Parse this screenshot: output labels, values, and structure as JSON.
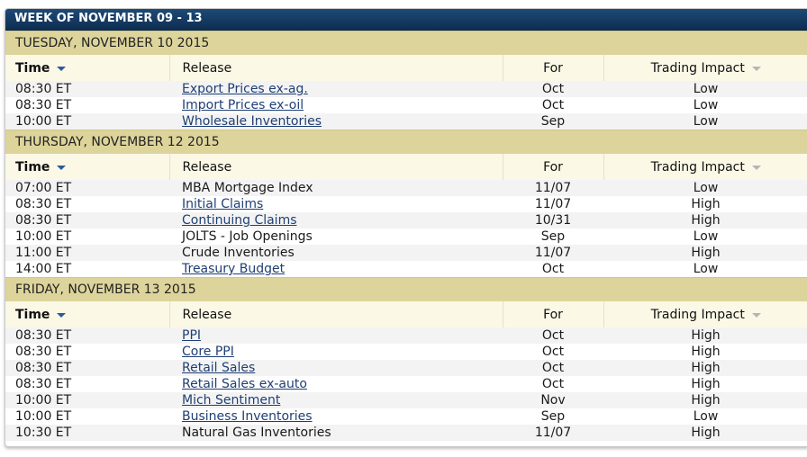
{
  "week_title": "WEEK OF NOVEMBER 09 - 13",
  "columns": {
    "time": "Time",
    "release": "Release",
    "for": "For",
    "impact": "Trading Impact"
  },
  "icons": {
    "time_sort": "sort-down-icon",
    "impact_sort": "sort-down-icon"
  },
  "colors": {
    "header_bg": "#13385f",
    "day_bg": "#ddd49b",
    "link": "#1f3f74"
  },
  "days": [
    {
      "title": "TUESDAY, NOVEMBER 10 2015",
      "rows": [
        {
          "time": "08:30 ET",
          "release": "Export Prices ex-ag.",
          "link": true,
          "for": "Oct",
          "impact": "Low"
        },
        {
          "time": "08:30 ET",
          "release": "Import Prices ex-oil",
          "link": true,
          "for": "Oct",
          "impact": "Low"
        },
        {
          "time": "10:00 ET",
          "release": "Wholesale Inventories",
          "link": true,
          "for": "Sep",
          "impact": "Low"
        }
      ]
    },
    {
      "title": "THURSDAY, NOVEMBER 12 2015",
      "rows": [
        {
          "time": "07:00 ET",
          "release": "MBA Mortgage Index",
          "link": false,
          "for": "11/07",
          "impact": "Low"
        },
        {
          "time": "08:30 ET",
          "release": "Initial Claims",
          "link": true,
          "for": "11/07",
          "impact": "High"
        },
        {
          "time": "08:30 ET",
          "release": "Continuing Claims",
          "link": true,
          "for": "10/31",
          "impact": "High"
        },
        {
          "time": "10:00 ET",
          "release": "JOLTS - Job Openings",
          "link": false,
          "for": "Sep",
          "impact": "Low"
        },
        {
          "time": "11:00 ET",
          "release": "Crude Inventories",
          "link": false,
          "for": "11/07",
          "impact": "High"
        },
        {
          "time": "14:00 ET",
          "release": "Treasury Budget",
          "link": true,
          "for": "Oct",
          "impact": "Low"
        }
      ]
    },
    {
      "title": "FRIDAY, NOVEMBER 13 2015",
      "rows": [
        {
          "time": "08:30 ET",
          "release": "PPI",
          "link": true,
          "for": "Oct",
          "impact": "High"
        },
        {
          "time": "08:30 ET",
          "release": "Core PPI",
          "link": true,
          "for": "Oct",
          "impact": "High"
        },
        {
          "time": "08:30 ET",
          "release": "Retail Sales",
          "link": true,
          "for": "Oct",
          "impact": "High"
        },
        {
          "time": "08:30 ET",
          "release": "Retail Sales ex-auto",
          "link": true,
          "for": "Oct",
          "impact": "High"
        },
        {
          "time": "10:00 ET",
          "release": "Mich Sentiment",
          "link": true,
          "for": "Nov",
          "impact": "High"
        },
        {
          "time": "10:00 ET",
          "release": "Business Inventories",
          "link": true,
          "for": "Sep",
          "impact": "Low"
        },
        {
          "time": "10:30 ET",
          "release": "Natural Gas Inventories",
          "link": false,
          "for": "11/07",
          "impact": "High"
        }
      ]
    }
  ]
}
